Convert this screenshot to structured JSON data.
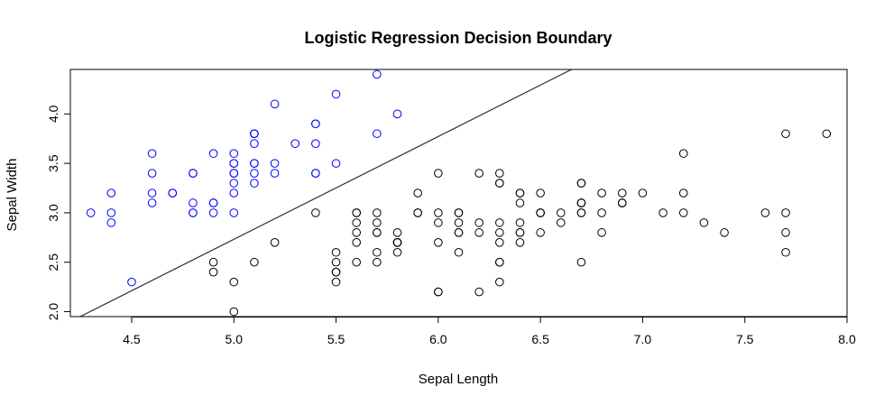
{
  "chart_data": {
    "type": "scatter",
    "title": "Logistic Regression Decision Boundary",
    "xlabel": "Sepal Length",
    "ylabel": "Sepal Width",
    "xlim": [
      4.2,
      8.0
    ],
    "ylim": [
      1.95,
      4.45
    ],
    "xticks": [
      "4.5",
      "5.0",
      "5.5",
      "6.0",
      "6.5",
      "7.0",
      "7.5",
      "8.0"
    ],
    "yticks": [
      "2.0",
      "2.5",
      "3.0",
      "3.5",
      "4.0"
    ],
    "grid": false,
    "legend": "none",
    "colors": {
      "setosa": "#0000ff",
      "other": "#000000",
      "boundary": "#333333"
    },
    "boundary": {
      "x": [
        4.2,
        6.7
      ],
      "y": [
        1.9,
        4.5
      ]
    },
    "series": [
      {
        "color": "#0000ff",
        "points": [
          [
            5.1,
            3.5
          ],
          [
            4.9,
            3.0
          ],
          [
            4.7,
            3.2
          ],
          [
            4.6,
            3.1
          ],
          [
            5.0,
            3.6
          ],
          [
            5.4,
            3.9
          ],
          [
            4.6,
            3.4
          ],
          [
            5.0,
            3.4
          ],
          [
            4.4,
            2.9
          ],
          [
            4.9,
            3.1
          ],
          [
            5.4,
            3.7
          ],
          [
            4.8,
            3.4
          ],
          [
            4.8,
            3.0
          ],
          [
            4.3,
            3.0
          ],
          [
            5.8,
            4.0
          ],
          [
            5.7,
            4.4
          ],
          [
            5.4,
            3.9
          ],
          [
            5.1,
            3.5
          ],
          [
            5.7,
            3.8
          ],
          [
            5.1,
            3.8
          ],
          [
            5.4,
            3.4
          ],
          [
            5.1,
            3.7
          ],
          [
            4.6,
            3.6
          ],
          [
            5.1,
            3.3
          ],
          [
            4.8,
            3.4
          ],
          [
            5.0,
            3.0
          ],
          [
            5.0,
            3.4
          ],
          [
            5.2,
            3.5
          ],
          [
            5.2,
            3.4
          ],
          [
            4.7,
            3.2
          ],
          [
            4.8,
            3.1
          ],
          [
            5.4,
            3.4
          ],
          [
            5.2,
            4.1
          ],
          [
            5.5,
            4.2
          ],
          [
            4.9,
            3.1
          ],
          [
            5.0,
            3.2
          ],
          [
            5.5,
            3.5
          ],
          [
            4.9,
            3.6
          ],
          [
            4.4,
            3.0
          ],
          [
            5.1,
            3.4
          ],
          [
            5.0,
            3.5
          ],
          [
            4.5,
            2.3
          ],
          [
            4.4,
            3.2
          ],
          [
            5.0,
            3.5
          ],
          [
            5.1,
            3.8
          ],
          [
            4.8,
            3.0
          ],
          [
            5.1,
            3.8
          ],
          [
            4.6,
            3.2
          ],
          [
            5.3,
            3.7
          ],
          [
            5.0,
            3.3
          ]
        ]
      },
      {
        "color": "#000000",
        "points": [
          [
            7.0,
            3.2
          ],
          [
            6.4,
            3.2
          ],
          [
            6.9,
            3.1
          ],
          [
            5.5,
            2.3
          ],
          [
            6.5,
            2.8
          ],
          [
            5.7,
            2.8
          ],
          [
            6.3,
            3.3
          ],
          [
            4.9,
            2.4
          ],
          [
            6.6,
            2.9
          ],
          [
            5.2,
            2.7
          ],
          [
            5.0,
            2.0
          ],
          [
            5.9,
            3.0
          ],
          [
            6.0,
            2.2
          ],
          [
            6.1,
            2.9
          ],
          [
            5.6,
            2.9
          ],
          [
            6.7,
            3.1
          ],
          [
            5.6,
            3.0
          ],
          [
            5.8,
            2.7
          ],
          [
            6.2,
            2.2
          ],
          [
            5.6,
            2.5
          ],
          [
            5.9,
            3.2
          ],
          [
            6.1,
            2.8
          ],
          [
            6.3,
            2.5
          ],
          [
            6.1,
            2.8
          ],
          [
            6.4,
            2.9
          ],
          [
            6.6,
            3.0
          ],
          [
            6.8,
            2.8
          ],
          [
            6.7,
            3.0
          ],
          [
            6.0,
            2.9
          ],
          [
            5.7,
            2.6
          ],
          [
            5.5,
            2.4
          ],
          [
            5.5,
            2.4
          ],
          [
            5.8,
            2.7
          ],
          [
            6.0,
            2.7
          ],
          [
            5.4,
            3.0
          ],
          [
            6.0,
            3.4
          ],
          [
            6.7,
            3.1
          ],
          [
            6.3,
            2.3
          ],
          [
            5.6,
            3.0
          ],
          [
            5.5,
            2.5
          ],
          [
            5.5,
            2.6
          ],
          [
            6.1,
            3.0
          ],
          [
            5.8,
            2.6
          ],
          [
            5.0,
            2.3
          ],
          [
            5.6,
            2.7
          ],
          [
            5.7,
            3.0
          ],
          [
            5.7,
            2.9
          ],
          [
            6.2,
            2.9
          ],
          [
            5.1,
            2.5
          ],
          [
            5.7,
            2.8
          ],
          [
            6.3,
            3.3
          ],
          [
            5.8,
            2.7
          ],
          [
            7.1,
            3.0
          ],
          [
            6.3,
            2.9
          ],
          [
            6.5,
            3.0
          ],
          [
            7.6,
            3.0
          ],
          [
            4.9,
            2.5
          ],
          [
            7.3,
            2.9
          ],
          [
            6.7,
            2.5
          ],
          [
            7.2,
            3.6
          ],
          [
            6.5,
            3.2
          ],
          [
            6.4,
            2.7
          ],
          [
            6.8,
            3.0
          ],
          [
            5.7,
            2.5
          ],
          [
            5.8,
            2.8
          ],
          [
            6.4,
            3.2
          ],
          [
            6.5,
            3.0
          ],
          [
            7.7,
            3.8
          ],
          [
            7.7,
            2.6
          ],
          [
            6.0,
            2.2
          ],
          [
            6.9,
            3.2
          ],
          [
            5.6,
            2.8
          ],
          [
            7.7,
            2.8
          ],
          [
            6.3,
            2.7
          ],
          [
            6.7,
            3.3
          ],
          [
            7.2,
            3.2
          ],
          [
            6.2,
            2.8
          ],
          [
            6.1,
            3.0
          ],
          [
            6.4,
            2.8
          ],
          [
            7.2,
            3.0
          ],
          [
            7.4,
            2.8
          ],
          [
            7.9,
            3.8
          ],
          [
            6.4,
            2.8
          ],
          [
            6.3,
            2.8
          ],
          [
            6.1,
            2.6
          ],
          [
            7.7,
            3.0
          ],
          [
            6.3,
            3.4
          ],
          [
            6.4,
            3.1
          ],
          [
            6.0,
            3.0
          ],
          [
            6.9,
            3.1
          ],
          [
            6.7,
            3.1
          ],
          [
            6.9,
            3.1
          ],
          [
            5.8,
            2.7
          ],
          [
            6.8,
            3.2
          ],
          [
            6.7,
            3.3
          ],
          [
            6.7,
            3.0
          ],
          [
            6.3,
            2.5
          ],
          [
            6.5,
            3.0
          ],
          [
            6.2,
            3.4
          ],
          [
            5.9,
            3.0
          ]
        ]
      }
    ]
  }
}
